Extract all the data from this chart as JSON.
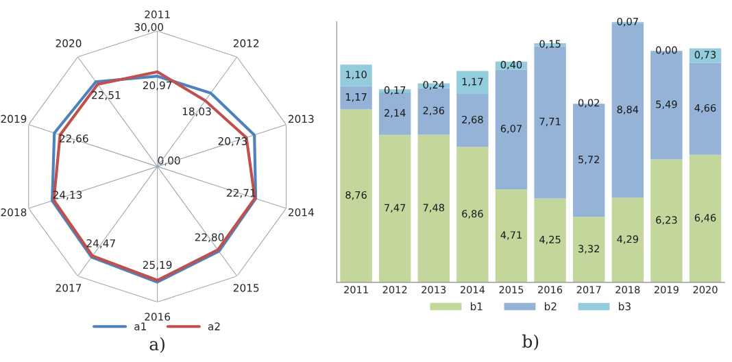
{
  "chart_data": [
    {
      "type": "radar",
      "categories": [
        "2011",
        "2012",
        "2013",
        "2014",
        "2015",
        "2016",
        "2017",
        "2018",
        "2019",
        "2020"
      ],
      "ylim": [
        0,
        30
      ],
      "yticks": [
        {
          "value": 0,
          "label": "0,00"
        },
        {
          "value": 30,
          "label": "30,00"
        }
      ],
      "legend": "bottom",
      "annotations": [
        "a)"
      ],
      "series": [
        {
          "name": "a1",
          "color": "#4f81bd",
          "values": [
            20.0,
            20.1,
            22.6,
            22.9,
            23.2,
            25.6,
            24.8,
            24.5,
            24.0,
            23.2
          ]
        },
        {
          "name": "a2",
          "color": "#c0504d",
          "values": [
            20.97,
            18.03,
            20.73,
            22.71,
            22.8,
            25.19,
            24.47,
            24.13,
            22.66,
            22.51
          ],
          "value_labels": [
            "20,97",
            "18,03",
            "20,73",
            "22,71",
            "22,80",
            "25,19",
            "24,47",
            "24,13",
            "22,66",
            "22,51"
          ]
        }
      ]
    },
    {
      "type": "bar",
      "stacked": true,
      "categories": [
        "2011",
        "2012",
        "2013",
        "2014",
        "2015",
        "2016",
        "2017",
        "2018",
        "2019",
        "2020"
      ],
      "tick_labels": "x",
      "legend": "bottom",
      "annotations": [
        "b)"
      ],
      "series": [
        {
          "name": "b1",
          "color": "#c3d69b",
          "values": [
            8.76,
            7.47,
            7.48,
            6.86,
            4.71,
            4.25,
            3.32,
            4.29,
            6.23,
            6.46
          ],
          "value_labels": [
            "8,76",
            "7,47",
            "7,48",
            "6,86",
            "4,71",
            "4,25",
            "3,32",
            "4,29",
            "6,23",
            "6,46"
          ]
        },
        {
          "name": "b2",
          "color": "#95b3d7",
          "values": [
            1.17,
            2.14,
            2.36,
            2.68,
            6.07,
            7.71,
            5.72,
            8.84,
            5.49,
            4.66
          ],
          "value_labels": [
            "1,17",
            "2,14",
            "2,36",
            "2,68",
            "6,07",
            "7,71",
            "5,72",
            "8,84",
            "5,49",
            "4,66"
          ]
        },
        {
          "name": "b3",
          "color": "#93cddd",
          "values": [
            1.1,
            0.17,
            0.24,
            1.17,
            0.4,
            0.15,
            0.02,
            0.07,
            0.0,
            0.73
          ],
          "value_labels": [
            "1,10",
            "0,17",
            "0,24",
            "1,17",
            "0,40",
            "0,15",
            "0,02",
            "0,07",
            "0,00",
            "0,73"
          ]
        }
      ]
    }
  ]
}
